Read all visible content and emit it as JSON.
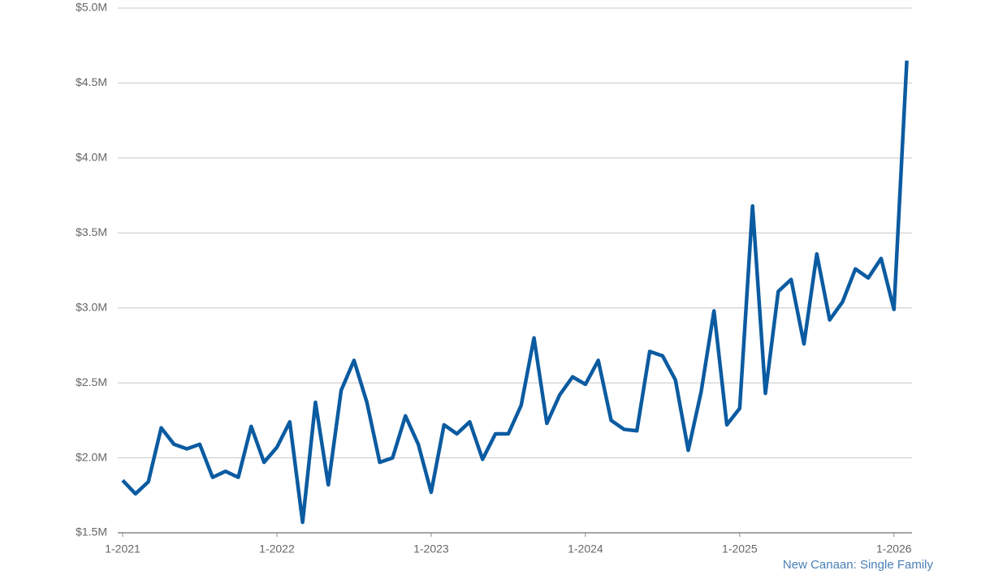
{
  "chart_data": {
    "type": "line",
    "categories": [
      "1-2021",
      null,
      null,
      null,
      null,
      null,
      null,
      null,
      null,
      null,
      null,
      null,
      "1-2022",
      null,
      null,
      null,
      null,
      null,
      null,
      null,
      null,
      null,
      null,
      null,
      "1-2023",
      null,
      null,
      null,
      null,
      null,
      null,
      null,
      null,
      null,
      null,
      null,
      "1-2024",
      null,
      null,
      null,
      null,
      null,
      null,
      null,
      null,
      null,
      null,
      null,
      "1-2025",
      null,
      null,
      null,
      null,
      null,
      null,
      null,
      null,
      null,
      null,
      null,
      "1-2026",
      null
    ],
    "series": [
      {
        "color": "#0b5ba1",
        "values": [
          1.85,
          1.76,
          1.84,
          2.2,
          2.09,
          2.06,
          2.09,
          1.87,
          1.91,
          1.87,
          2.21,
          1.97,
          2.07,
          2.24,
          1.57,
          2.37,
          1.82,
          2.45,
          2.65,
          2.37,
          1.97,
          2.0,
          2.28,
          2.09,
          1.77,
          2.22,
          2.16,
          2.24,
          1.99,
          2.16,
          2.16,
          2.35,
          2.8,
          2.23,
          2.42,
          2.54,
          2.49,
          2.65,
          2.25,
          2.19,
          2.18,
          2.71,
          2.68,
          2.52,
          2.05,
          2.44,
          2.98,
          2.22,
          2.33,
          3.68,
          2.43,
          3.11,
          3.19,
          2.76,
          3.36,
          2.92,
          3.04,
          3.26,
          3.2,
          3.33,
          2.99,
          4.65
        ]
      }
    ],
    "ylim": [
      1.5,
      5.0
    ],
    "yticks": [
      {
        "value": 1.5,
        "label": "$1.5M"
      },
      {
        "value": 2.0,
        "label": "$2.0M"
      },
      {
        "value": 2.5,
        "label": "$2.5M"
      },
      {
        "value": 3.0,
        "label": "$3.0M"
      },
      {
        "value": 3.5,
        "label": "$3.5M"
      },
      {
        "value": 4.0,
        "label": "$4.0M"
      },
      {
        "value": 4.5,
        "label": "$4.5M"
      },
      {
        "value": 5.0,
        "label": "$5.0M"
      }
    ],
    "grid": true,
    "source": "New Canaan: Single Family"
  }
}
